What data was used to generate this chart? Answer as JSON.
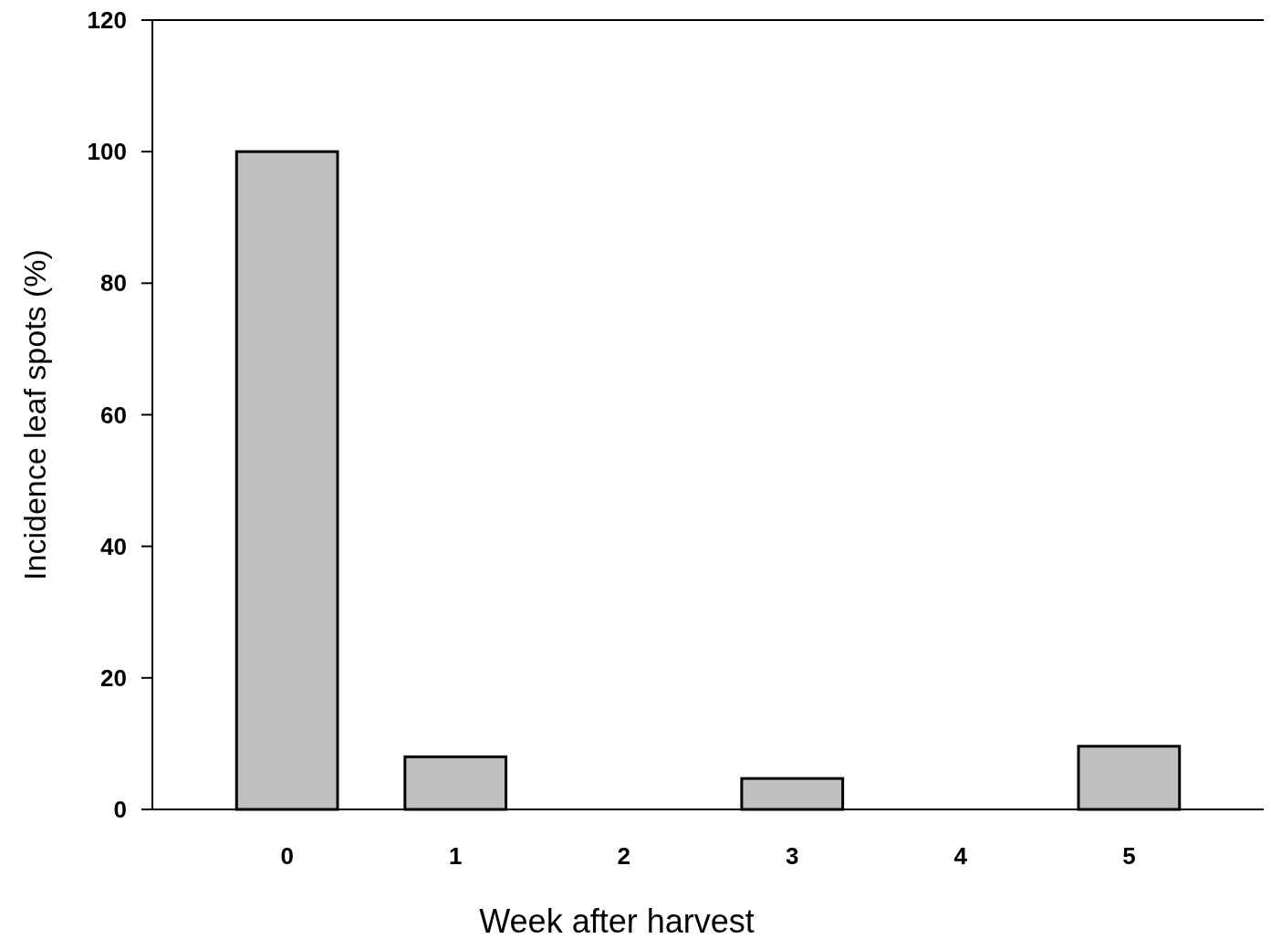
{
  "chart_data": {
    "type": "bar",
    "xlabel": "Week after harvest",
    "ylabel": "Incidence leaf spots (%)",
    "categories": [
      "0",
      "1",
      "2",
      "3",
      "4",
      "5"
    ],
    "values": [
      100,
      8,
      0,
      4.7,
      0,
      9.6
    ],
    "color": "#c0c0c0",
    "ylim": [
      0,
      120
    ],
    "yticks": [
      0,
      20,
      40,
      60,
      80,
      100,
      120
    ],
    "grid": false
  }
}
